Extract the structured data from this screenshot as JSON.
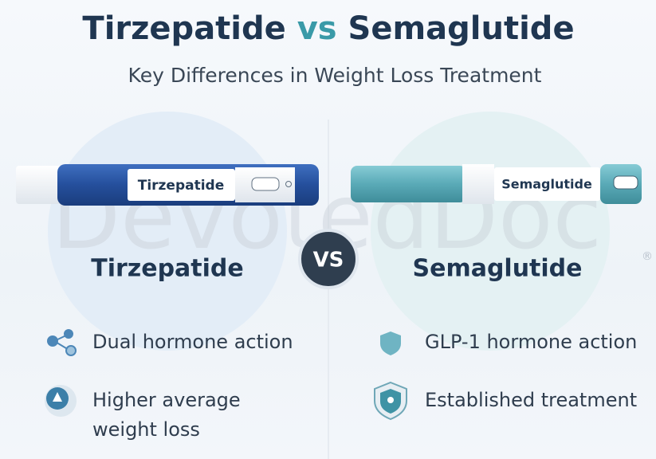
{
  "header": {
    "title_left": "Tirzepatide",
    "title_vs": "vs",
    "title_right": "Semaglutide",
    "subtitle": "Key Differences in Weight Loss Treatment"
  },
  "watermark": "DevotedDoc",
  "watermark_mark": "®",
  "vs_badge": "VS",
  "left": {
    "pen_label": "Tirzepatide",
    "heading": "Tirzepatide",
    "features": [
      "Dual hormone action",
      "Higher average weight loss"
    ]
  },
  "right": {
    "pen_label": "Semaglutide",
    "heading": "Semaglutide",
    "features": [
      "GLP-1 hormone action",
      "Established treatment"
    ]
  }
}
